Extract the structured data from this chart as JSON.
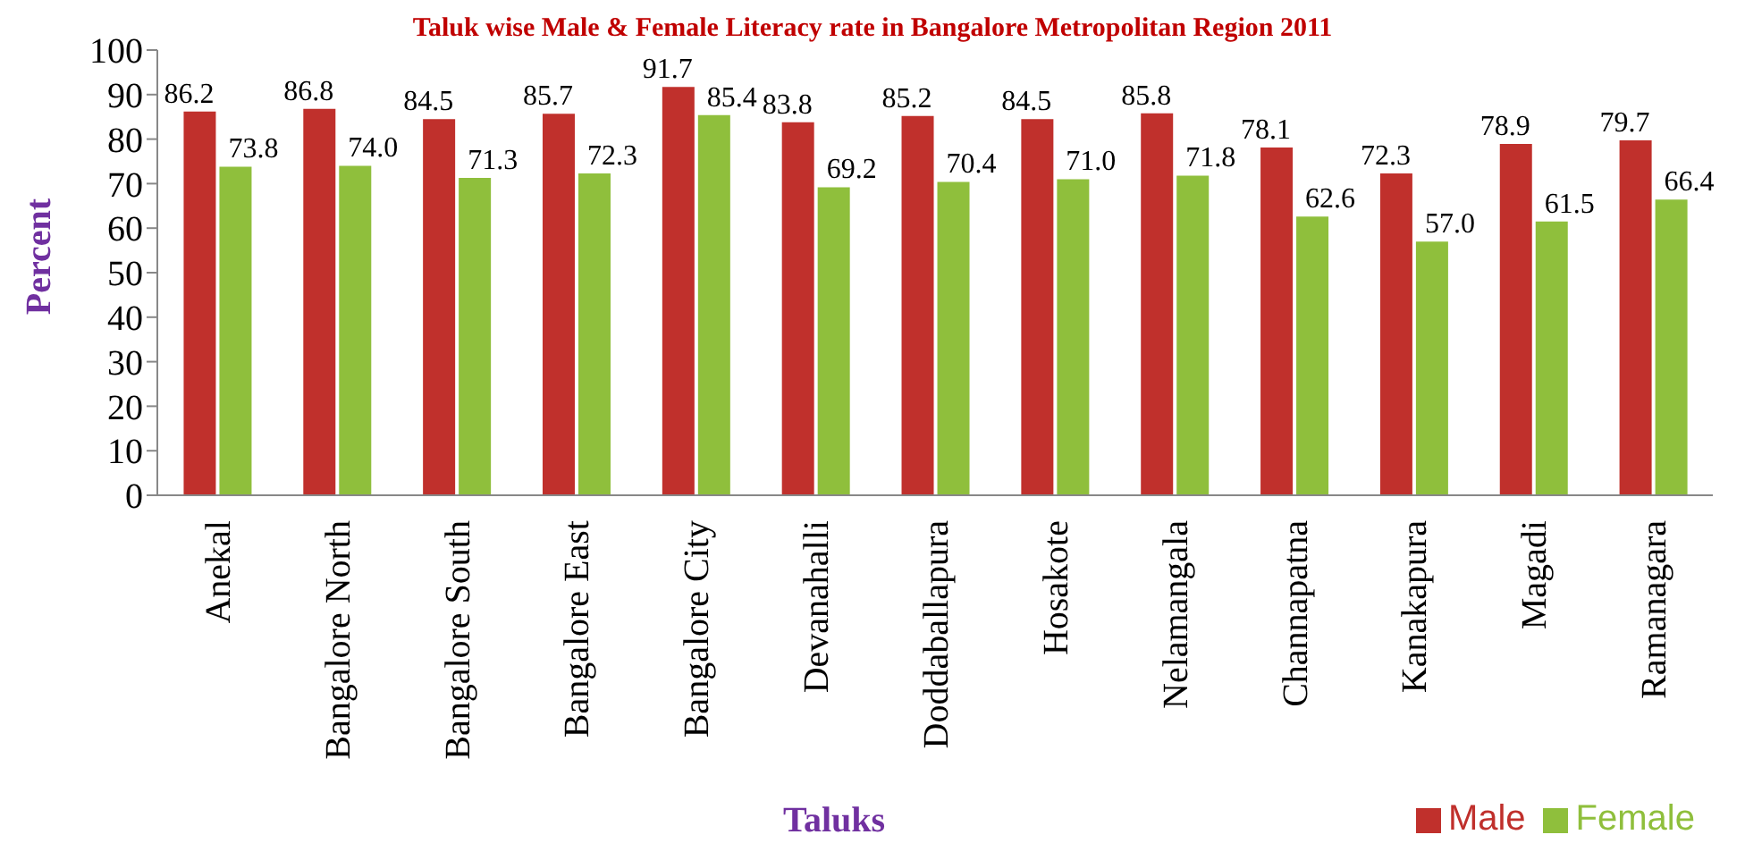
{
  "chart_data": {
    "type": "bar",
    "title": "Taluk wise Male & Female Literacy rate in Bangalore Metropolitan Region 2011",
    "xlabel": "Taluks",
    "ylabel": "Percent",
    "categories": [
      "Anekal",
      "Bangalore North",
      "Bangalore South",
      "Bangalore East",
      "Bangalore City",
      "Devanahalli",
      "Doddaballapura",
      "Hosakote",
      "Nelamangala",
      "Channapatna",
      "Kanakapura",
      "Magadi",
      "Ramanagara"
    ],
    "series": [
      {
        "name": "Male",
        "color": "#c0302c",
        "values": [
          86.2,
          86.8,
          84.5,
          85.7,
          91.7,
          83.8,
          85.2,
          84.5,
          85.8,
          78.1,
          72.3,
          78.9,
          79.7
        ]
      },
      {
        "name": "Female",
        "color": "#8fbf3c",
        "values": [
          73.8,
          74.0,
          71.3,
          72.3,
          85.4,
          69.2,
          70.4,
          71.0,
          71.8,
          62.6,
          57.0,
          61.5,
          66.4
        ]
      }
    ],
    "value_labels": [
      [
        "86.2",
        "86.8",
        "84.5",
        "85.7",
        "91.7",
        "83.8",
        "85.2",
        "84.5",
        "85.8",
        "78.1",
        "72.3",
        "78.9",
        "79.7"
      ],
      [
        "73.8",
        "74.0",
        "71.3",
        "72.3",
        "85.4",
        "69.2",
        "70.4",
        "71.0",
        "71.8",
        "62.6",
        "57.0",
        "61.5",
        "66.4"
      ]
    ],
    "ylim": [
      0,
      100
    ],
    "yticks": [
      0,
      10,
      20,
      30,
      40,
      50,
      60,
      70,
      80,
      90,
      100
    ],
    "grid": false,
    "legend": "bottom right"
  }
}
